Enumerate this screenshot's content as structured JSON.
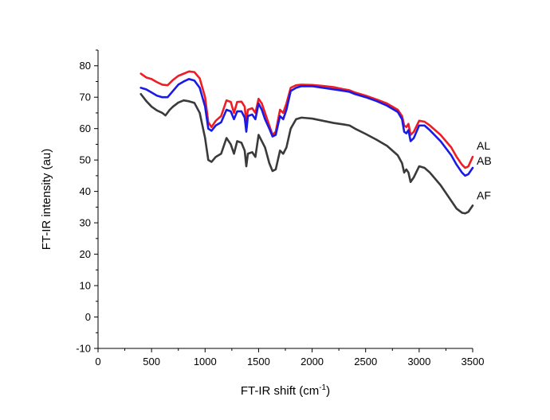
{
  "chart_data": {
    "type": "line",
    "xlabel": "FT-IR shift (cm",
    "xlabel_superscript": "-1",
    "xlabel_suffix": ")",
    "ylabel": "FT-IR intensity (au)",
    "xlim": [
      0,
      3500
    ],
    "ylim": [
      -10,
      85
    ],
    "x_ticks": [
      "0",
      "500",
      "1000",
      "1500",
      "2000",
      "2500",
      "3000",
      "3500"
    ],
    "y_ticks": [
      "-10",
      "0",
      "10",
      "20",
      "30",
      "40",
      "50",
      "60",
      "70",
      "80"
    ],
    "grid": false,
    "series": [
      {
        "name": "AL",
        "color": "#ee1c24",
        "points": [
          [
            400,
            77.5
          ],
          [
            450,
            76.3
          ],
          [
            500,
            75.8
          ],
          [
            550,
            74.8
          ],
          [
            600,
            74
          ],
          [
            650,
            73.8
          ],
          [
            700,
            75.5
          ],
          [
            750,
            76.8
          ],
          [
            800,
            77.5
          ],
          [
            850,
            78.2
          ],
          [
            900,
            78
          ],
          [
            950,
            76
          ],
          [
            1000,
            70
          ],
          [
            1030,
            62
          ],
          [
            1060,
            60.5
          ],
          [
            1100,
            62.5
          ],
          [
            1150,
            64
          ],
          [
            1200,
            69
          ],
          [
            1240,
            68.5
          ],
          [
            1270,
            65
          ],
          [
            1300,
            68.5
          ],
          [
            1340,
            68.6
          ],
          [
            1370,
            67
          ],
          [
            1385,
            62
          ],
          [
            1400,
            66
          ],
          [
            1440,
            66.5
          ],
          [
            1470,
            65
          ],
          [
            1500,
            69.5
          ],
          [
            1530,
            68
          ],
          [
            1560,
            65
          ],
          [
            1600,
            61
          ],
          [
            1630,
            58
          ],
          [
            1660,
            59
          ],
          [
            1700,
            66
          ],
          [
            1730,
            65
          ],
          [
            1760,
            68
          ],
          [
            1800,
            73
          ],
          [
            1850,
            73.8
          ],
          [
            1900,
            74
          ],
          [
            2000,
            73.9
          ],
          [
            2100,
            73.6
          ],
          [
            2200,
            73.2
          ],
          [
            2300,
            72.5
          ],
          [
            2350,
            72.2
          ],
          [
            2400,
            71.5
          ],
          [
            2500,
            70.5
          ],
          [
            2600,
            69.3
          ],
          [
            2700,
            68
          ],
          [
            2800,
            66
          ],
          [
            2840,
            64
          ],
          [
            2860,
            61
          ],
          [
            2880,
            60.5
          ],
          [
            2900,
            61.5
          ],
          [
            2920,
            58
          ],
          [
            2950,
            59
          ],
          [
            3000,
            62.5
          ],
          [
            3050,
            62.2
          ],
          [
            3100,
            61
          ],
          [
            3200,
            58
          ],
          [
            3300,
            54
          ],
          [
            3350,
            51
          ],
          [
            3400,
            48.5
          ],
          [
            3430,
            47.5
          ],
          [
            3460,
            48
          ],
          [
            3500,
            51
          ]
        ]
      },
      {
        "name": "AB",
        "color": "#1a1ae6",
        "points": [
          [
            400,
            73
          ],
          [
            450,
            72.5
          ],
          [
            500,
            71.5
          ],
          [
            550,
            70.5
          ],
          [
            600,
            70
          ],
          [
            650,
            70
          ],
          [
            700,
            72
          ],
          [
            750,
            74
          ],
          [
            800,
            75
          ],
          [
            850,
            75.8
          ],
          [
            900,
            75.3
          ],
          [
            950,
            73
          ],
          [
            1000,
            67
          ],
          [
            1030,
            60
          ],
          [
            1060,
            59.3
          ],
          [
            1100,
            61
          ],
          [
            1150,
            62
          ],
          [
            1200,
            66
          ],
          [
            1240,
            65.5
          ],
          [
            1270,
            63
          ],
          [
            1300,
            65.5
          ],
          [
            1340,
            65.5
          ],
          [
            1370,
            63.5
          ],
          [
            1385,
            59
          ],
          [
            1400,
            64
          ],
          [
            1440,
            64.5
          ],
          [
            1470,
            63
          ],
          [
            1500,
            68
          ],
          [
            1530,
            66
          ],
          [
            1560,
            63
          ],
          [
            1600,
            60
          ],
          [
            1630,
            57.5
          ],
          [
            1660,
            58
          ],
          [
            1700,
            64
          ],
          [
            1730,
            63
          ],
          [
            1760,
            66
          ],
          [
            1800,
            72
          ],
          [
            1850,
            73
          ],
          [
            1900,
            73.5
          ],
          [
            2000,
            73.5
          ],
          [
            2100,
            73
          ],
          [
            2200,
            72.5
          ],
          [
            2300,
            72
          ],
          [
            2350,
            71.7
          ],
          [
            2400,
            71
          ],
          [
            2500,
            70
          ],
          [
            2600,
            68.8
          ],
          [
            2700,
            67.3
          ],
          [
            2800,
            65.3
          ],
          [
            2840,
            63
          ],
          [
            2860,
            59
          ],
          [
            2880,
            58.5
          ],
          [
            2900,
            59.5
          ],
          [
            2920,
            56
          ],
          [
            2950,
            57
          ],
          [
            3000,
            61
          ],
          [
            3050,
            61
          ],
          [
            3100,
            59.5
          ],
          [
            3200,
            56
          ],
          [
            3300,
            51.5
          ],
          [
            3350,
            48.5
          ],
          [
            3400,
            46
          ],
          [
            3430,
            45
          ],
          [
            3460,
            45.5
          ],
          [
            3500,
            47.5
          ]
        ]
      },
      {
        "name": "AF",
        "color": "#3a3a3a",
        "points": [
          [
            400,
            71
          ],
          [
            450,
            68.8
          ],
          [
            500,
            67
          ],
          [
            550,
            65.8
          ],
          [
            600,
            65
          ],
          [
            630,
            64.2
          ],
          [
            670,
            66
          ],
          [
            700,
            67
          ],
          [
            750,
            68.3
          ],
          [
            800,
            69
          ],
          [
            850,
            68.7
          ],
          [
            900,
            68.2
          ],
          [
            950,
            65
          ],
          [
            1000,
            57
          ],
          [
            1030,
            50
          ],
          [
            1060,
            49.4
          ],
          [
            1100,
            51
          ],
          [
            1150,
            52
          ],
          [
            1200,
            57
          ],
          [
            1240,
            55
          ],
          [
            1270,
            52
          ],
          [
            1300,
            56
          ],
          [
            1340,
            55.5
          ],
          [
            1370,
            53
          ],
          [
            1385,
            48
          ],
          [
            1400,
            52
          ],
          [
            1440,
            52.5
          ],
          [
            1470,
            51
          ],
          [
            1500,
            58
          ],
          [
            1530,
            56
          ],
          [
            1560,
            54
          ],
          [
            1600,
            49
          ],
          [
            1630,
            46.5
          ],
          [
            1660,
            47
          ],
          [
            1700,
            53
          ],
          [
            1730,
            52
          ],
          [
            1760,
            54
          ],
          [
            1800,
            60
          ],
          [
            1850,
            63
          ],
          [
            1900,
            63.5
          ],
          [
            2000,
            63.2
          ],
          [
            2100,
            62.5
          ],
          [
            2200,
            61.8
          ],
          [
            2300,
            61.3
          ],
          [
            2350,
            61
          ],
          [
            2400,
            60
          ],
          [
            2500,
            58.3
          ],
          [
            2600,
            56.5
          ],
          [
            2700,
            54.5
          ],
          [
            2800,
            51.5
          ],
          [
            2840,
            49
          ],
          [
            2860,
            46
          ],
          [
            2880,
            47
          ],
          [
            2900,
            46
          ],
          [
            2920,
            43
          ],
          [
            2950,
            44.5
          ],
          [
            3000,
            48
          ],
          [
            3050,
            47.5
          ],
          [
            3100,
            46
          ],
          [
            3200,
            42
          ],
          [
            3300,
            37
          ],
          [
            3350,
            34.5
          ],
          [
            3400,
            33.2
          ],
          [
            3430,
            33
          ],
          [
            3460,
            33.5
          ],
          [
            3500,
            35.5
          ]
        ]
      }
    ]
  }
}
